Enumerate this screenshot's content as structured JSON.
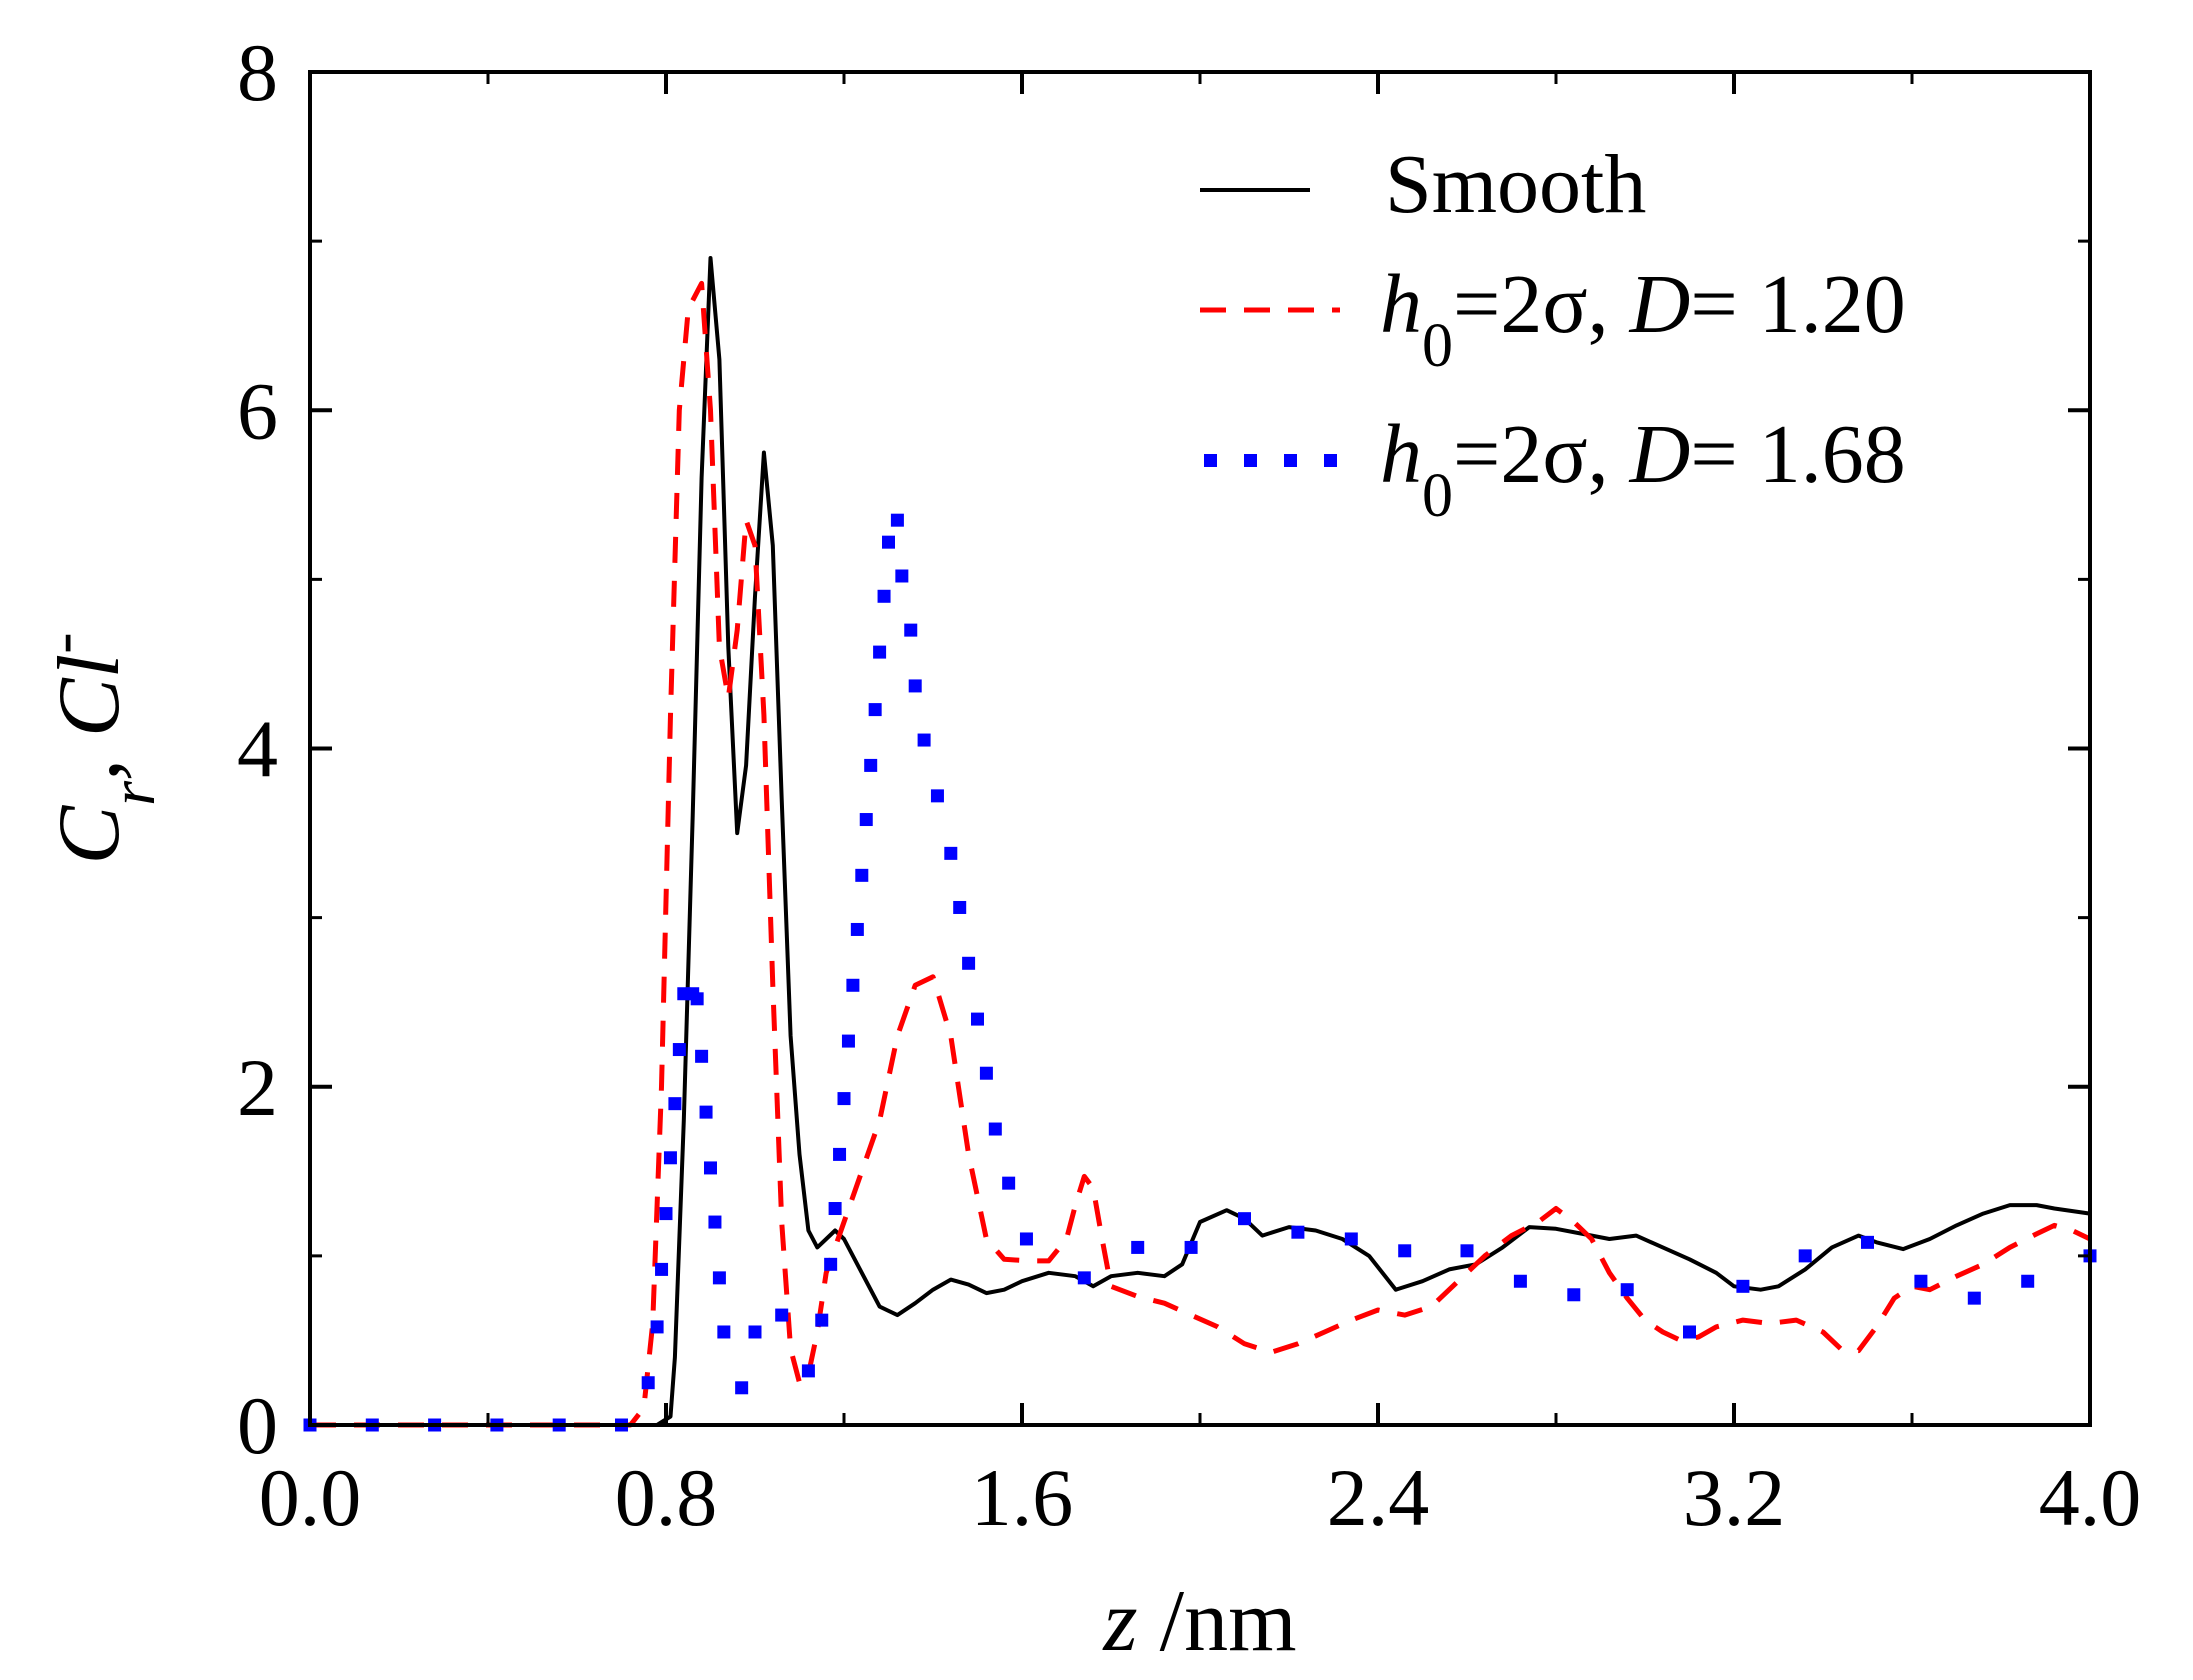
{
  "chart_data": {
    "type": "line",
    "title": "",
    "xlabel": {
      "var": "z",
      "unit": " /nm"
    },
    "ylabel": {
      "var": "C",
      "sub": "r",
      "ion": ", Cl",
      "sup": "-"
    },
    "xlim": [
      0.0,
      4.0
    ],
    "ylim": [
      0,
      8
    ],
    "x_ticks": [
      "0.0",
      "0.8",
      "1.6",
      "2.4",
      "3.2",
      "4.0"
    ],
    "x_tick_values": [
      0.0,
      0.8,
      1.6,
      2.4,
      3.2,
      4.0
    ],
    "y_ticks": [
      "0",
      "2",
      "4",
      "6",
      "8"
    ],
    "y_tick_values": [
      0,
      2,
      4,
      6,
      8
    ],
    "legend_position": "top-right",
    "series": [
      {
        "name": "Smooth",
        "legend": {
          "main": "Smooth"
        },
        "style": "solid",
        "color": "#000000",
        "points": [
          [
            0.0,
            0
          ],
          [
            0.78,
            0
          ],
          [
            0.81,
            0.05
          ],
          [
            0.82,
            0.4
          ],
          [
            0.84,
            1.8
          ],
          [
            0.86,
            3.6
          ],
          [
            0.88,
            5.6
          ],
          [
            0.9,
            6.9
          ],
          [
            0.92,
            6.3
          ],
          [
            0.94,
            4.6
          ],
          [
            0.96,
            3.5
          ],
          [
            0.98,
            3.9
          ],
          [
            1.0,
            4.9
          ],
          [
            1.02,
            5.75
          ],
          [
            1.04,
            5.2
          ],
          [
            1.06,
            3.7
          ],
          [
            1.08,
            2.3
          ],
          [
            1.1,
            1.6
          ],
          [
            1.12,
            1.15
          ],
          [
            1.14,
            1.05
          ],
          [
            1.16,
            1.1
          ],
          [
            1.18,
            1.15
          ],
          [
            1.2,
            1.1
          ],
          [
            1.24,
            0.9
          ],
          [
            1.28,
            0.7
          ],
          [
            1.32,
            0.65
          ],
          [
            1.36,
            0.72
          ],
          [
            1.4,
            0.8
          ],
          [
            1.44,
            0.86
          ],
          [
            1.48,
            0.83
          ],
          [
            1.52,
            0.78
          ],
          [
            1.56,
            0.8
          ],
          [
            1.6,
            0.85
          ],
          [
            1.66,
            0.9
          ],
          [
            1.72,
            0.88
          ],
          [
            1.76,
            0.82
          ],
          [
            1.8,
            0.88
          ],
          [
            1.86,
            0.9
          ],
          [
            1.92,
            0.88
          ],
          [
            1.96,
            0.95
          ],
          [
            2.0,
            1.2
          ],
          [
            2.06,
            1.27
          ],
          [
            2.1,
            1.22
          ],
          [
            2.14,
            1.12
          ],
          [
            2.2,
            1.17
          ],
          [
            2.26,
            1.15
          ],
          [
            2.32,
            1.1
          ],
          [
            2.38,
            1.0
          ],
          [
            2.44,
            0.8
          ],
          [
            2.5,
            0.85
          ],
          [
            2.56,
            0.92
          ],
          [
            2.62,
            0.95
          ],
          [
            2.68,
            1.05
          ],
          [
            2.74,
            1.17
          ],
          [
            2.8,
            1.16
          ],
          [
            2.86,
            1.13
          ],
          [
            2.92,
            1.1
          ],
          [
            2.98,
            1.12
          ],
          [
            3.04,
            1.05
          ],
          [
            3.1,
            0.98
          ],
          [
            3.16,
            0.9
          ],
          [
            3.2,
            0.82
          ],
          [
            3.26,
            0.8
          ],
          [
            3.3,
            0.82
          ],
          [
            3.36,
            0.92
          ],
          [
            3.42,
            1.05
          ],
          [
            3.48,
            1.12
          ],
          [
            3.52,
            1.08
          ],
          [
            3.58,
            1.04
          ],
          [
            3.64,
            1.1
          ],
          [
            3.7,
            1.18
          ],
          [
            3.76,
            1.25
          ],
          [
            3.82,
            1.3
          ],
          [
            3.88,
            1.3
          ],
          [
            3.92,
            1.28
          ],
          [
            4.0,
            1.25
          ]
        ]
      },
      {
        "name": "h0=2σ, D= 1.20",
        "legend": {
          "var": "h",
          "sub": "0",
          "mid": "=2σ, ",
          "var2": "D",
          "tail": "= 1.20"
        },
        "style": "dashed",
        "color": "#ff0000",
        "points": [
          [
            0.0,
            0
          ],
          [
            0.72,
            0
          ],
          [
            0.75,
            0.1
          ],
          [
            0.77,
            0.6
          ],
          [
            0.79,
            2.0
          ],
          [
            0.81,
            4.2
          ],
          [
            0.83,
            6.0
          ],
          [
            0.85,
            6.6
          ],
          [
            0.88,
            6.75
          ],
          [
            0.9,
            6.0
          ],
          [
            0.92,
            4.6
          ],
          [
            0.94,
            4.3
          ],
          [
            0.96,
            4.7
          ],
          [
            0.98,
            5.35
          ],
          [
            1.0,
            5.2
          ],
          [
            1.02,
            4.2
          ],
          [
            1.04,
            2.6
          ],
          [
            1.06,
            1.2
          ],
          [
            1.08,
            0.45
          ],
          [
            1.1,
            0.25
          ],
          [
            1.12,
            0.3
          ],
          [
            1.14,
            0.55
          ],
          [
            1.16,
            0.9
          ],
          [
            1.2,
            1.2
          ],
          [
            1.24,
            1.5
          ],
          [
            1.28,
            1.8
          ],
          [
            1.32,
            2.3
          ],
          [
            1.36,
            2.6
          ],
          [
            1.4,
            2.65
          ],
          [
            1.44,
            2.3
          ],
          [
            1.48,
            1.6
          ],
          [
            1.52,
            1.1
          ],
          [
            1.56,
            0.98
          ],
          [
            1.62,
            0.97
          ],
          [
            1.66,
            0.97
          ],
          [
            1.7,
            1.1
          ],
          [
            1.72,
            1.3
          ],
          [
            1.74,
            1.47
          ],
          [
            1.76,
            1.4
          ],
          [
            1.78,
            1.1
          ],
          [
            1.8,
            0.82
          ],
          [
            1.86,
            0.76
          ],
          [
            1.92,
            0.72
          ],
          [
            1.98,
            0.65
          ],
          [
            2.04,
            0.58
          ],
          [
            2.1,
            0.48
          ],
          [
            2.16,
            0.43
          ],
          [
            2.22,
            0.48
          ],
          [
            2.28,
            0.55
          ],
          [
            2.34,
            0.62
          ],
          [
            2.4,
            0.68
          ],
          [
            2.46,
            0.65
          ],
          [
            2.52,
            0.7
          ],
          [
            2.58,
            0.85
          ],
          [
            2.64,
            1.0
          ],
          [
            2.7,
            1.12
          ],
          [
            2.76,
            1.2
          ],
          [
            2.8,
            1.28
          ],
          [
            2.84,
            1.2
          ],
          [
            2.88,
            1.1
          ],
          [
            2.92,
            0.9
          ],
          [
            2.96,
            0.75
          ],
          [
            3.0,
            0.62
          ],
          [
            3.04,
            0.55
          ],
          [
            3.08,
            0.5
          ],
          [
            3.12,
            0.52
          ],
          [
            3.16,
            0.58
          ],
          [
            3.22,
            0.62
          ],
          [
            3.28,
            0.6
          ],
          [
            3.34,
            0.62
          ],
          [
            3.4,
            0.55
          ],
          [
            3.44,
            0.45
          ],
          [
            3.48,
            0.44
          ],
          [
            3.52,
            0.58
          ],
          [
            3.56,
            0.75
          ],
          [
            3.6,
            0.82
          ],
          [
            3.64,
            0.8
          ],
          [
            3.7,
            0.88
          ],
          [
            3.76,
            0.95
          ],
          [
            3.82,
            1.05
          ],
          [
            3.88,
            1.13
          ],
          [
            3.92,
            1.18
          ],
          [
            3.96,
            1.15
          ],
          [
            4.0,
            1.1
          ]
        ]
      },
      {
        "name": "h0=2σ, D= 1.68",
        "legend": {
          "var": "h",
          "sub": "0",
          "mid": "=2σ, ",
          "var2": "D",
          "tail": "= 1.68"
        },
        "style": "dotted",
        "color": "#0000ff",
        "points": [
          [
            0.0,
            0
          ],
          [
            0.14,
            0
          ],
          [
            0.28,
            0
          ],
          [
            0.42,
            0
          ],
          [
            0.56,
            0
          ],
          [
            0.7,
            0
          ],
          [
            0.76,
            0.25
          ],
          [
            0.78,
            0.58
          ],
          [
            0.79,
            0.92
          ],
          [
            0.8,
            1.25
          ],
          [
            0.81,
            1.58
          ],
          [
            0.82,
            1.9
          ],
          [
            0.83,
            2.22
          ],
          [
            0.84,
            2.55
          ],
          [
            0.86,
            2.55
          ],
          [
            0.87,
            2.52
          ],
          [
            0.88,
            2.18
          ],
          [
            0.89,
            1.85
          ],
          [
            0.9,
            1.52
          ],
          [
            0.91,
            1.2
          ],
          [
            0.92,
            0.87
          ],
          [
            0.93,
            0.55
          ],
          [
            0.97,
            0.22
          ],
          [
            1.0,
            0.55
          ],
          [
            1.06,
            0.65
          ],
          [
            1.12,
            0.32
          ],
          [
            1.15,
            0.62
          ],
          [
            1.17,
            0.95
          ],
          [
            1.18,
            1.28
          ],
          [
            1.19,
            1.6
          ],
          [
            1.2,
            1.93
          ],
          [
            1.21,
            2.27
          ],
          [
            1.22,
            2.6
          ],
          [
            1.23,
            2.93
          ],
          [
            1.24,
            3.25
          ],
          [
            1.25,
            3.58
          ],
          [
            1.26,
            3.9
          ],
          [
            1.27,
            4.23
          ],
          [
            1.28,
            4.57
          ],
          [
            1.29,
            4.9
          ],
          [
            1.3,
            5.22
          ],
          [
            1.32,
            5.35
          ],
          [
            1.33,
            5.02
          ],
          [
            1.35,
            4.7
          ],
          [
            1.36,
            4.37
          ],
          [
            1.38,
            4.05
          ],
          [
            1.41,
            3.72
          ],
          [
            1.44,
            3.38
          ],
          [
            1.46,
            3.06
          ],
          [
            1.48,
            2.73
          ],
          [
            1.5,
            2.4
          ],
          [
            1.52,
            2.08
          ],
          [
            1.54,
            1.75
          ],
          [
            1.57,
            1.43
          ],
          [
            1.61,
            1.1
          ],
          [
            1.74,
            0.87
          ],
          [
            1.86,
            1.05
          ],
          [
            1.98,
            1.05
          ],
          [
            2.1,
            1.22
          ],
          [
            2.22,
            1.14
          ],
          [
            2.34,
            1.1
          ],
          [
            2.46,
            1.03
          ],
          [
            2.6,
            1.03
          ],
          [
            2.72,
            0.85
          ],
          [
            2.84,
            0.77
          ],
          [
            2.96,
            0.8
          ],
          [
            3.1,
            0.55
          ],
          [
            3.22,
            0.82
          ],
          [
            3.36,
            1.0
          ],
          [
            3.5,
            1.08
          ],
          [
            3.62,
            0.85
          ],
          [
            3.74,
            0.75
          ],
          [
            3.86,
            0.85
          ],
          [
            4.0,
            1.0
          ]
        ]
      }
    ]
  }
}
